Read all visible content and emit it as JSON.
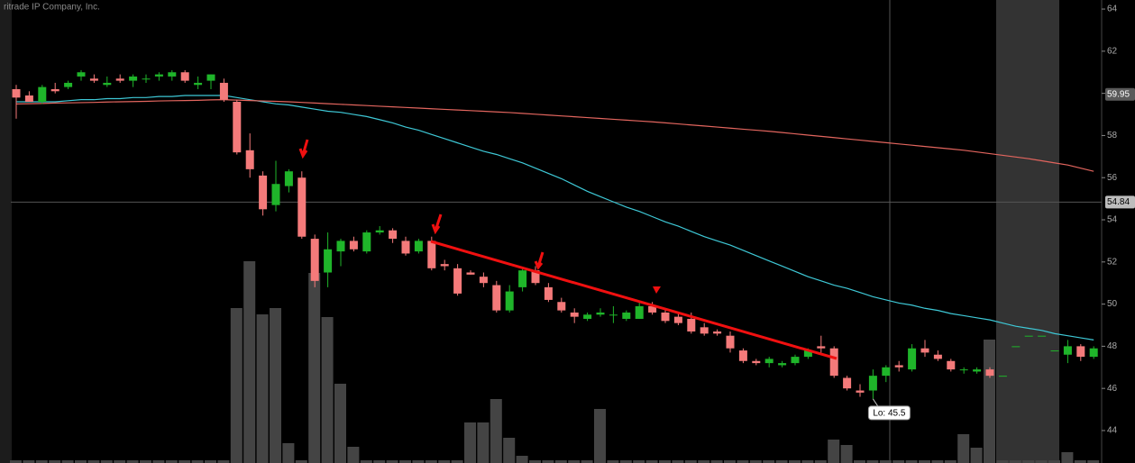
{
  "chart_data": {
    "type": "candlestick",
    "watermark": "ritrade IP Company, Inc.",
    "open": [
      60.2,
      59.9,
      59.6,
      60.2,
      60.3,
      60.8,
      60.7,
      60.4,
      60.7,
      60.6,
      60.7,
      60.8,
      60.8,
      61.0,
      60.4,
      60.6,
      60.5,
      59.6,
      57.3,
      56.1,
      54.7,
      55.6,
      56.0,
      53.1,
      51.5,
      52.5,
      53.0,
      52.5,
      53.4,
      53.5,
      53.0,
      52.5,
      53.0,
      51.9,
      51.7,
      51.5,
      51.3,
      50.9,
      49.7,
      50.8,
      51.6,
      50.8,
      50.1,
      49.6,
      49.3,
      49.5,
      49.5,
      49.3,
      49.3,
      49.9,
      49.6,
      49.4,
      49.3,
      48.9,
      48.7,
      48.5,
      47.8,
      47.3,
      47.2,
      47.1,
      47.2,
      47.5,
      48.0,
      47.9,
      46.5,
      45.9,
      45.9,
      46.6,
      47.1,
      46.9,
      47.9,
      47.6,
      47.3,
      46.9,
      46.8,
      46.9,
      46.6,
      48.0,
      48.5,
      48.5,
      47.8,
      47.6,
      48.0,
      47.5
    ],
    "high": [
      60.4,
      60.1,
      60.4,
      60.5,
      60.6,
      61.1,
      60.9,
      60.8,
      60.9,
      60.9,
      60.9,
      61.0,
      61.1,
      61.1,
      60.8,
      60.9,
      60.7,
      59.7,
      58.1,
      56.3,
      56.8,
      56.4,
      56.3,
      53.3,
      53.4,
      53.1,
      53.2,
      53.5,
      53.7,
      53.6,
      53.2,
      53.1,
      53.2,
      52.1,
      51.9,
      51.6,
      51.5,
      51.1,
      50.9,
      51.7,
      51.8,
      51.0,
      50.3,
      49.8,
      49.6,
      49.8,
      49.9,
      49.7,
      50.1,
      50.1,
      49.8,
      49.6,
      49.6,
      49.1,
      48.8,
      48.7,
      47.9,
      47.4,
      47.5,
      47.3,
      47.6,
      47.9,
      48.5,
      48.0,
      46.6,
      46.2,
      46.9,
      47.1,
      47.3,
      48.1,
      48.3,
      47.8,
      47.4,
      47.0,
      47.0,
      47.0,
      46.6,
      48.0,
      48.5,
      48.5,
      47.8,
      48.3,
      48.1,
      48.0
    ],
    "low": [
      58.8,
      59.6,
      59.5,
      60.0,
      60.2,
      60.6,
      60.5,
      60.3,
      60.5,
      60.3,
      60.5,
      60.6,
      60.6,
      60.5,
      60.2,
      60.2,
      59.6,
      57.1,
      56.0,
      54.2,
      54.4,
      55.3,
      53.1,
      50.8,
      50.8,
      51.8,
      52.5,
      52.4,
      53.3,
      52.9,
      52.3,
      52.4,
      51.6,
      51.6,
      50.4,
      51.4,
      50.8,
      49.6,
      49.6,
      50.6,
      50.9,
      50.1,
      49.6,
      49.1,
      49.2,
      49.4,
      49.1,
      49.2,
      49.3,
      49.5,
      49.1,
      49.0,
      48.6,
      48.5,
      48.5,
      47.7,
      47.2,
      47.1,
      47.0,
      47.0,
      47.1,
      47.4,
      47.7,
      46.5,
      45.9,
      45.6,
      45.5,
      46.3,
      46.8,
      46.8,
      47.5,
      47.3,
      46.8,
      46.7,
      46.7,
      46.5,
      46.6,
      48.0,
      48.5,
      48.5,
      47.8,
      47.2,
      47.3,
      47.4
    ],
    "close": [
      59.8,
      59.6,
      60.3,
      60.1,
      60.5,
      61.0,
      60.6,
      60.5,
      60.6,
      60.8,
      60.7,
      60.9,
      61.0,
      60.6,
      60.5,
      60.9,
      59.7,
      57.2,
      56.4,
      54.5,
      55.7,
      56.3,
      53.2,
      51.1,
      52.6,
      53.0,
      52.6,
      53.4,
      53.5,
      53.1,
      52.4,
      53.0,
      51.7,
      51.8,
      50.5,
      51.4,
      51.0,
      49.7,
      50.6,
      51.6,
      51.0,
      50.2,
      49.7,
      49.4,
      49.5,
      49.6,
      49.5,
      49.6,
      49.9,
      49.6,
      49.2,
      49.1,
      48.7,
      48.6,
      48.6,
      47.9,
      47.3,
      47.2,
      47.4,
      47.2,
      47.5,
      47.8,
      47.9,
      46.6,
      46.0,
      45.8,
      46.6,
      47.0,
      47.0,
      47.9,
      47.7,
      47.4,
      46.9,
      46.9,
      46.9,
      46.6,
      46.6,
      48.0,
      48.5,
      48.5,
      47.8,
      48.0,
      47.5,
      47.9
    ],
    "up_color": "#1fb52a",
    "down_color": "#f47a7a",
    "volume": {
      "color": "#444444",
      "lim": [
        0,
        514
      ],
      "values": [
        3,
        3,
        3,
        3,
        3,
        3,
        3,
        3,
        3,
        3,
        3,
        3,
        3,
        3,
        3,
        3,
        3,
        172,
        224,
        165,
        172,
        22,
        3,
        211,
        162,
        88,
        18,
        3,
        3,
        3,
        3,
        3,
        3,
        3,
        3,
        45,
        45,
        71,
        28,
        8,
        3,
        3,
        3,
        3,
        3,
        60,
        3,
        3,
        3,
        3,
        3,
        3,
        3,
        3,
        3,
        3,
        3,
        3,
        3,
        3,
        3,
        3,
        3,
        26,
        20,
        3,
        3,
        3,
        3,
        3,
        3,
        3,
        3,
        32,
        17,
        137,
        3,
        3,
        3,
        3,
        3,
        12,
        3,
        3
      ]
    },
    "moving_averages": [
      {
        "color": "#3ec8d6",
        "values": [
          59.6,
          59.6,
          59.6,
          59.6,
          59.65,
          59.7,
          59.7,
          59.75,
          59.75,
          59.8,
          59.8,
          59.85,
          59.85,
          59.9,
          59.9,
          59.9,
          59.9,
          59.8,
          59.7,
          59.6,
          59.5,
          59.45,
          59.35,
          59.25,
          59.15,
          59.1,
          59.0,
          58.9,
          58.75,
          58.6,
          58.4,
          58.25,
          58.05,
          57.85,
          57.65,
          57.45,
          57.25,
          57.1,
          56.9,
          56.7,
          56.45,
          56.2,
          55.95,
          55.65,
          55.35,
          55.1,
          54.85,
          54.6,
          54.4,
          54.15,
          53.9,
          53.7,
          53.45,
          53.2,
          53.0,
          52.8,
          52.55,
          52.3,
          52.05,
          51.8,
          51.55,
          51.3,
          51.1,
          50.9,
          50.75,
          50.55,
          50.35,
          50.2,
          50.05,
          49.95,
          49.8,
          49.7,
          49.55,
          49.45,
          49.35,
          49.25,
          49.1,
          48.95,
          48.85,
          48.75,
          48.6,
          48.5,
          48.4,
          48.3
        ]
      },
      {
        "color": "#e2655e",
        "values": [
          59.5,
          59.51,
          59.52,
          59.54,
          59.55,
          59.56,
          59.57,
          59.59,
          59.6,
          59.61,
          59.62,
          59.64,
          59.65,
          59.66,
          59.67,
          59.69,
          59.7,
          59.68,
          59.66,
          59.64,
          59.62,
          59.6,
          59.57,
          59.54,
          59.51,
          59.48,
          59.45,
          59.42,
          59.39,
          59.36,
          59.33,
          59.3,
          59.27,
          59.24,
          59.21,
          59.18,
          59.15,
          59.12,
          59.09,
          59.05,
          59.01,
          58.97,
          58.93,
          58.89,
          58.85,
          58.81,
          58.77,
          58.73,
          58.69,
          58.65,
          58.6,
          58.55,
          58.5,
          58.45,
          58.4,
          58.35,
          58.3,
          58.25,
          58.2,
          58.14,
          58.08,
          58.02,
          57.96,
          57.9,
          57.84,
          57.78,
          57.72,
          57.66,
          57.6,
          57.54,
          57.48,
          57.42,
          57.36,
          57.3,
          57.22,
          57.14,
          57.06,
          56.98,
          56.9,
          56.8,
          56.7,
          56.6,
          56.45,
          56.3
        ]
      }
    ],
    "ylim": [
      42.46,
      64.43
    ],
    "yticks": [
      44,
      46,
      48,
      50,
      52,
      54,
      56,
      58,
      60,
      62,
      64
    ],
    "price_labels": [
      59.95,
      54.84
    ],
    "low_marker": {
      "value": 45.5,
      "label": "Lo: 45.5"
    }
  }
}
